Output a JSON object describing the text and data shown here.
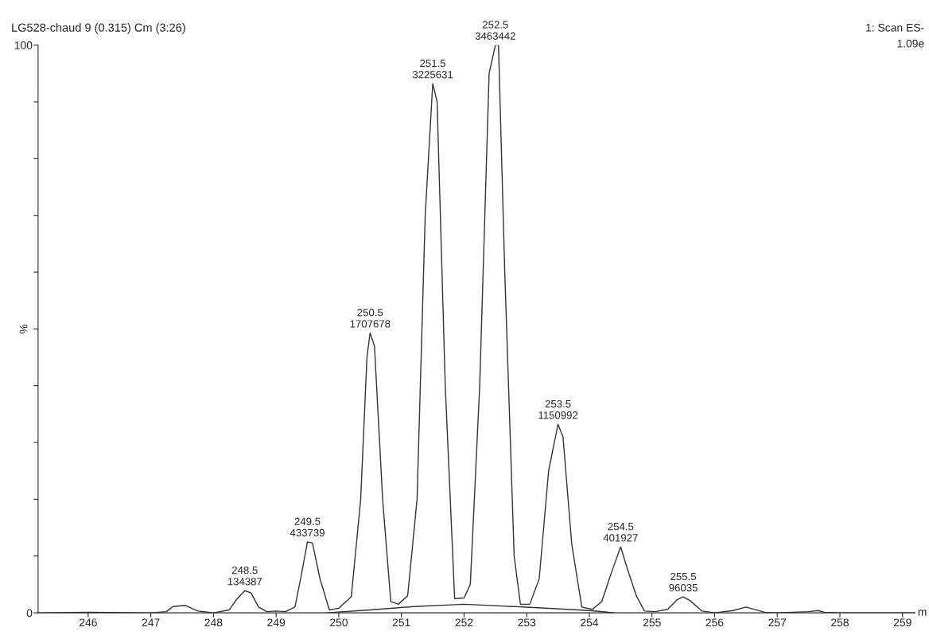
{
  "chart_data": {
    "type": "line",
    "title": "LG528-chaud 9 (0.315) Cm (3:26)",
    "xlabel": "m",
    "ylabel": "%",
    "xlim": [
      245.2,
      259.2
    ],
    "xticks": [
      246,
      247,
      248,
      249,
      250,
      251,
      252,
      253,
      254,
      255,
      256,
      257,
      258,
      259
    ],
    "ylim": [
      0,
      100
    ],
    "yticks": [
      0,
      {
        "value": 10,
        "label": null
      },
      {
        "value": 20,
        "label": null
      },
      {
        "value": 30,
        "label": null
      },
      {
        "value": 40,
        "label": null
      },
      {
        "value": 50,
        "label": null
      },
      {
        "value": 60,
        "label": null
      },
      {
        "value": 70,
        "label": null
      },
      {
        "value": 80,
        "label": null
      },
      {
        "value": 90,
        "label": null
      },
      100
    ],
    "grid": false,
    "legend": false,
    "marker": "none",
    "line_style": "solid",
    "series": [
      {
        "color": "#333333",
        "x": [
          245.2,
          246.0,
          247.0,
          247.25,
          247.35,
          247.55,
          247.75,
          248.0,
          248.25,
          248.38,
          248.5,
          248.6,
          248.72,
          248.85,
          249.0,
          249.15,
          249.3,
          249.4,
          249.5,
          249.58,
          249.7,
          249.85,
          250.0,
          250.2,
          250.35,
          250.45,
          250.5,
          250.57,
          250.7,
          250.83,
          250.95,
          251.1,
          251.25,
          251.38,
          251.5,
          251.57,
          251.7,
          251.85,
          252.0,
          252.1,
          252.25,
          252.4,
          252.5,
          252.55,
          252.65,
          252.8,
          252.9,
          253.05,
          253.2,
          253.35,
          253.5,
          253.58,
          253.72,
          253.88,
          254.05,
          254.2,
          254.35,
          254.5,
          254.6,
          254.75,
          254.88,
          255.05,
          255.25,
          255.4,
          255.5,
          255.6,
          255.8,
          256.0,
          256.3,
          256.5,
          256.8,
          257.0,
          257.5,
          257.65,
          257.75,
          258.0,
          259.2
        ],
        "values": [
          0,
          0.1,
          0,
          0.2,
          1.1,
          1.3,
          0.3,
          0,
          0.5,
          2.5,
          3.9,
          3.5,
          1.0,
          0.2,
          0.3,
          0.2,
          1.0,
          6.5,
          12.5,
          12.3,
          6,
          0.5,
          0.8,
          2.8,
          20,
          45,
          49.3,
          47,
          20,
          2,
          1.5,
          3,
          20,
          70,
          93.2,
          90,
          40,
          2.5,
          2.6,
          5,
          40,
          95,
          100,
          100,
          60,
          10,
          1.5,
          1.5,
          6,
          25,
          33.2,
          31,
          12,
          1.0,
          0.6,
          2,
          7,
          11.6,
          8,
          3,
          0.3,
          0.2,
          0.6,
          2.3,
          2.8,
          2.2,
          0.3,
          0,
          0.4,
          1.0,
          0.1,
          0,
          0.2,
          0.4,
          0.1,
          0,
          0
        ]
      },
      {
        "color": "#333333",
        "x": [
          249.8,
          250.5,
          251.2,
          252.0,
          253.0,
          254.0,
          254.4
        ],
        "values": [
          0,
          0.5,
          1.1,
          1.5,
          1.0,
          0.4,
          0
        ]
      }
    ],
    "annotations": [
      "1: Scan ES-",
      "1.09e",
      {
        "text": "248.5\n134387",
        "x": 248.5,
        "y": 3.9
      },
      {
        "text": "249.5\n433739",
        "x": 249.5,
        "y": 12.5
      },
      {
        "text": "250.5\n1707678",
        "x": 250.5,
        "y": 49.3
      },
      {
        "text": "251.5\n3225631",
        "x": 251.5,
        "y": 93.2
      },
      {
        "text": "252.5\n3463442",
        "x": 252.5,
        "y": 100
      },
      {
        "text": "253.5\n1150992",
        "x": 253.5,
        "y": 33.2
      },
      {
        "text": "254.5\n401927",
        "x": 254.5,
        "y": 11.6
      },
      {
        "text": "255.5\n96035",
        "x": 255.5,
        "y": 2.8
      }
    ]
  }
}
